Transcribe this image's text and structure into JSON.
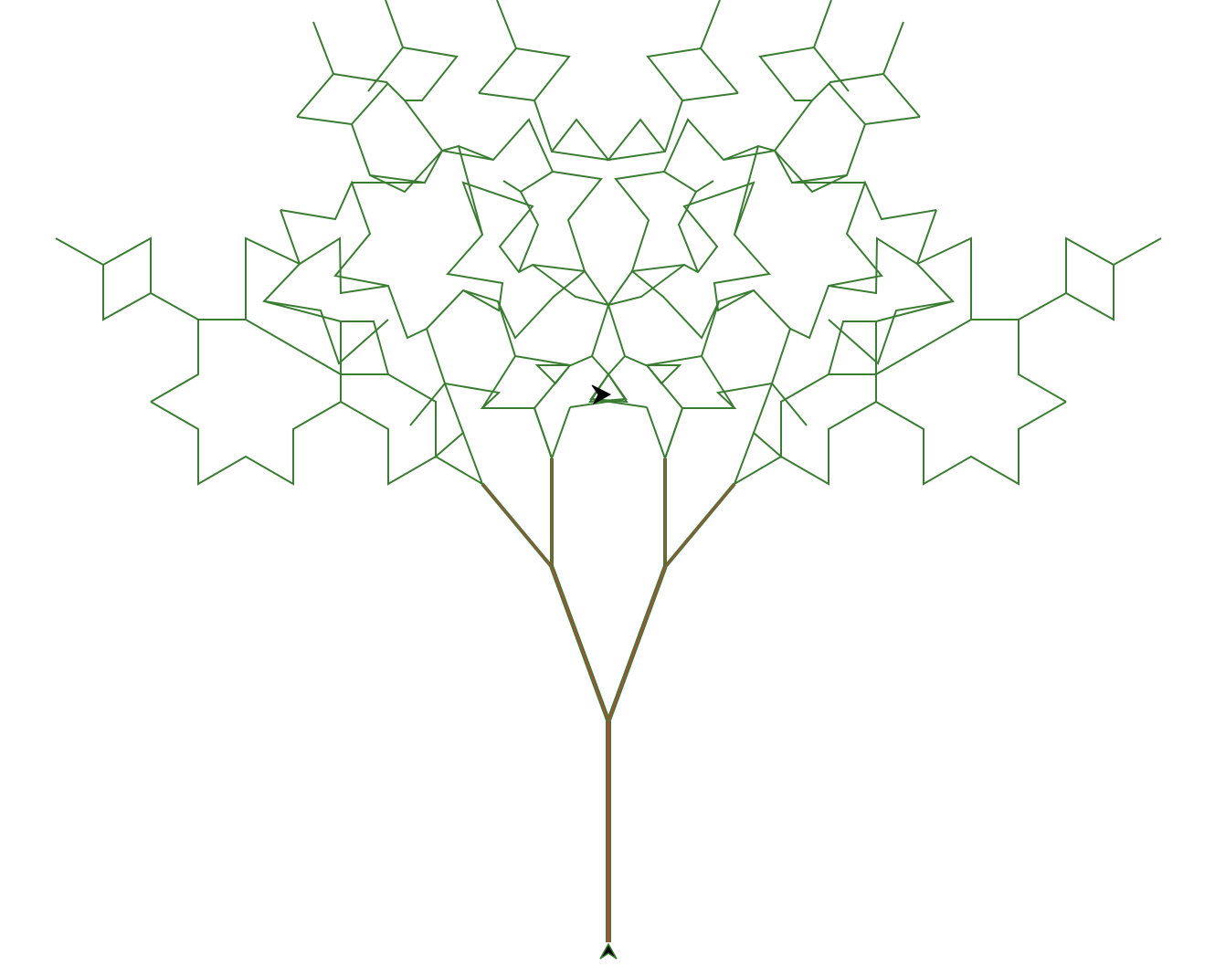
{
  "canvas": {
    "background": "#ffffff"
  },
  "drawing": {
    "leaf_color": "#3a7d32",
    "trunk_outline_color": "#3a7d32",
    "trunk_fill_color": "#b04a3a",
    "turtle_color": "#000000",
    "turtle_outline_color": "#3a7d32",
    "branch_angle_deg": 60,
    "segment_length_ratio": 1.0
  },
  "icons": {
    "turtle_cursor": "turtle-arrow-icon",
    "start_marker": "start-arrow-icon"
  }
}
